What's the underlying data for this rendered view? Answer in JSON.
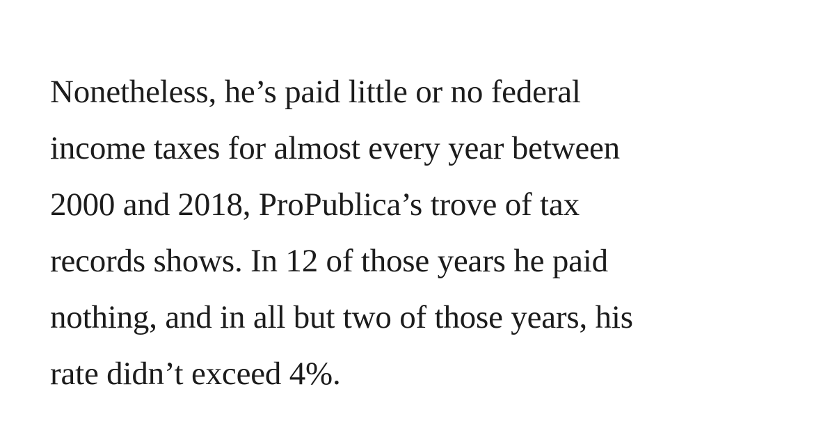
{
  "article": {
    "paragraph_lines": [
      "Nonetheless, he’s paid little or no federal",
      "income taxes for almost every year between",
      "2000 and 2018, ProPublica’s trove of tax",
      "records shows. In 12 of those years he paid",
      "nothing, and in all but two of those years, his",
      "rate didn’t exceed 4%."
    ]
  },
  "colors": {
    "background": "#ffffff",
    "text": "#1c1c1c"
  }
}
